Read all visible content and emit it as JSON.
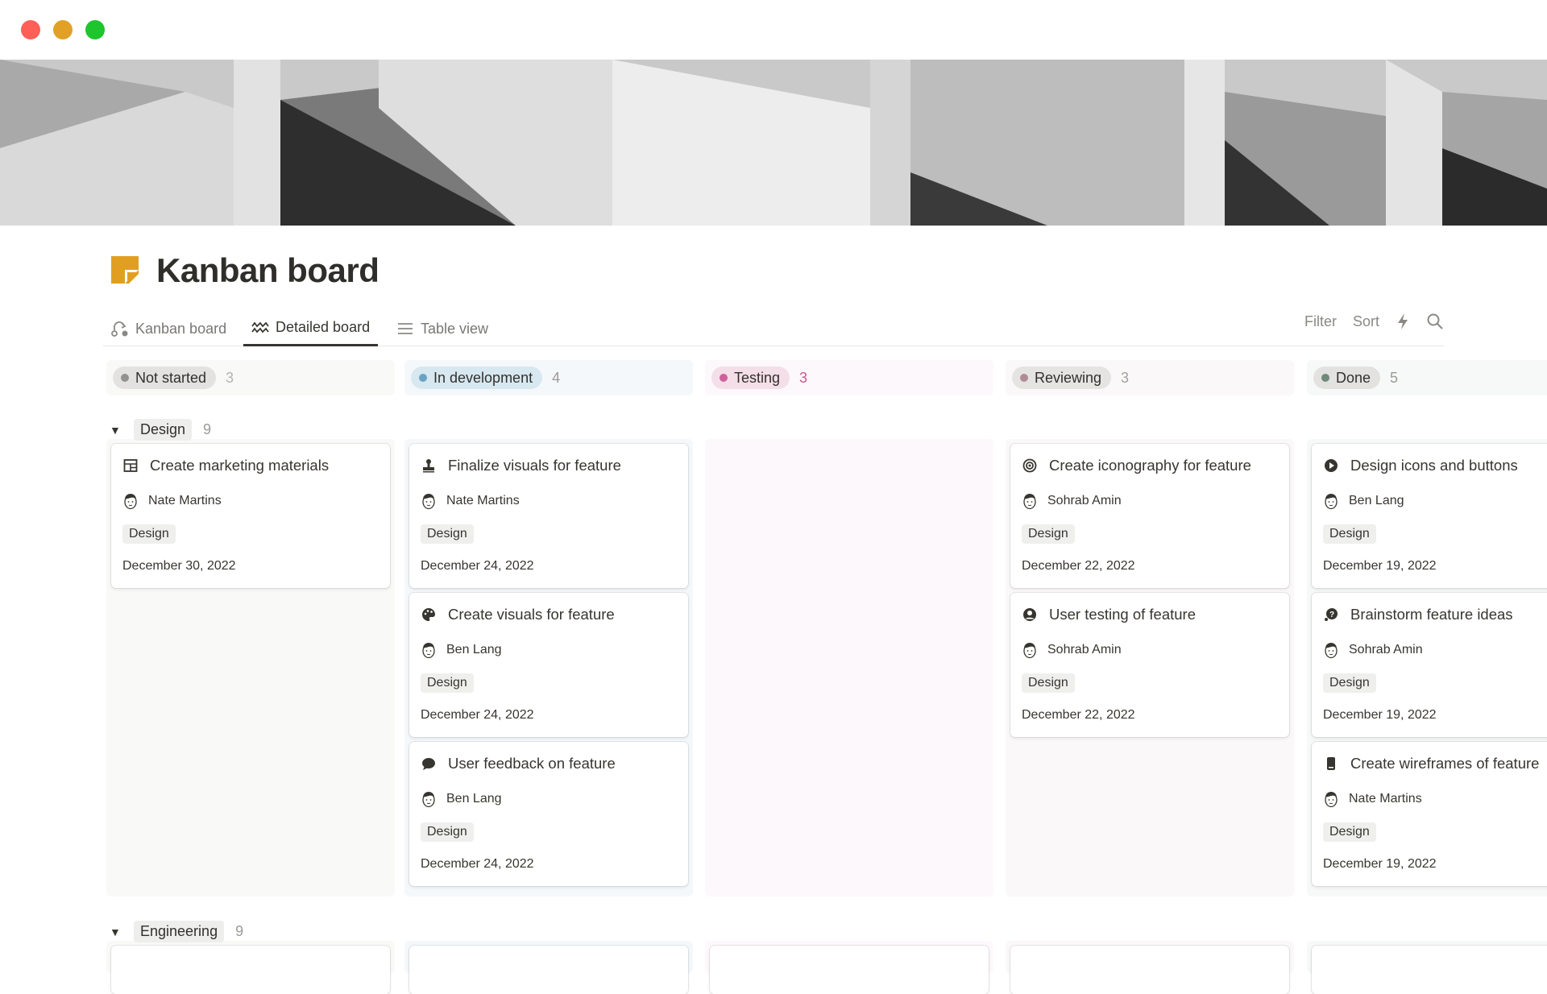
{
  "window": {
    "controls": [
      {
        "name": "close",
        "color": "#fe5f57"
      },
      {
        "name": "minimize",
        "color": "#e1a127"
      },
      {
        "name": "zoom",
        "color": "#1fc52c"
      }
    ]
  },
  "page": {
    "title": "Kanban board",
    "icon": "sticky-note-icon",
    "icon_color": "#e19f22"
  },
  "tabs": [
    {
      "label": "Kanban board",
      "icon": "route-icon",
      "active": false
    },
    {
      "label": "Detailed board",
      "icon": "waves-icon",
      "active": true
    },
    {
      "label": "Table view",
      "icon": "list-icon",
      "active": false
    }
  ],
  "toolbar": {
    "filter": "Filter",
    "sort": "Sort",
    "automation_icon": "lightning-icon",
    "search_icon": "search-icon"
  },
  "columns": [
    {
      "label": "Not started",
      "count": "3",
      "pill": "#e3e2e0",
      "dot": "#91918e",
      "bg": "#f9f9f8",
      "count_color": "#b4b3b0"
    },
    {
      "label": "In development",
      "count": "4",
      "pill": "#d8e8f0",
      "dot": "#6aa3c2",
      "bg": "#f5f8fa",
      "count_color": "#9b9a97"
    },
    {
      "label": "Testing",
      "count": "3",
      "pill": "#f4dfe9",
      "dot": "#d0609a",
      "bg": "#fcf8fb",
      "count_color": "#c9588f"
    },
    {
      "label": "Reviewing",
      "count": "3",
      "pill": "#e6e4e3",
      "dot": "#b08b96",
      "bg": "#faf8f8",
      "count_color": "#a3a29e"
    },
    {
      "label": "Done",
      "count": "5",
      "pill": "#e3e2e0",
      "dot": "#6e8a7a",
      "bg": "#f7f9f8",
      "count_color": "#9b9a97"
    }
  ],
  "groups": [
    {
      "label": "Design",
      "count": "9",
      "cards": [
        [
          {
            "title": "Create marketing materials",
            "icon": "layout-icon",
            "assignee": "Nate Martins",
            "tag": "Design",
            "date": "December 30, 2022"
          }
        ],
        [
          {
            "title": "Finalize visuals for feature",
            "icon": "stamp-icon",
            "assignee": "Nate Martins",
            "tag": "Design",
            "date": "December 24, 2022"
          },
          {
            "title": "Create visuals for feature",
            "icon": "palette-icon",
            "assignee": "Ben Lang",
            "tag": "Design",
            "date": "December 24, 2022"
          },
          {
            "title": "User feedback on feature",
            "icon": "chat-bubble-icon",
            "assignee": "Ben Lang",
            "tag": "Design",
            "date": "December 24, 2022"
          }
        ],
        [],
        [
          {
            "title": "Create iconography for feature",
            "icon": "target-icon",
            "assignee": "Sohrab Amin",
            "tag": "Design",
            "date": "December 22, 2022"
          },
          {
            "title": "User testing of feature",
            "icon": "user-circle-icon",
            "assignee": "Sohrab Amin",
            "tag": "Design",
            "date": "December 22, 2022"
          }
        ],
        [
          {
            "title": "Design icons and buttons",
            "icon": "play-circle-icon",
            "assignee": "Ben Lang",
            "tag": "Design",
            "date": "December 19, 2022"
          },
          {
            "title": "Brainstorm feature ideas",
            "icon": "question-bubble-icon",
            "assignee": "Sohrab Amin",
            "tag": "Design",
            "date": "December 19, 2022"
          },
          {
            "title": "Create wireframes of feature",
            "icon": "phone-icon",
            "assignee": "Nate Martins",
            "tag": "Design",
            "date": "December 19, 2022"
          }
        ]
      ]
    },
    {
      "label": "Engineering",
      "count": "9",
      "cards": []
    }
  ]
}
